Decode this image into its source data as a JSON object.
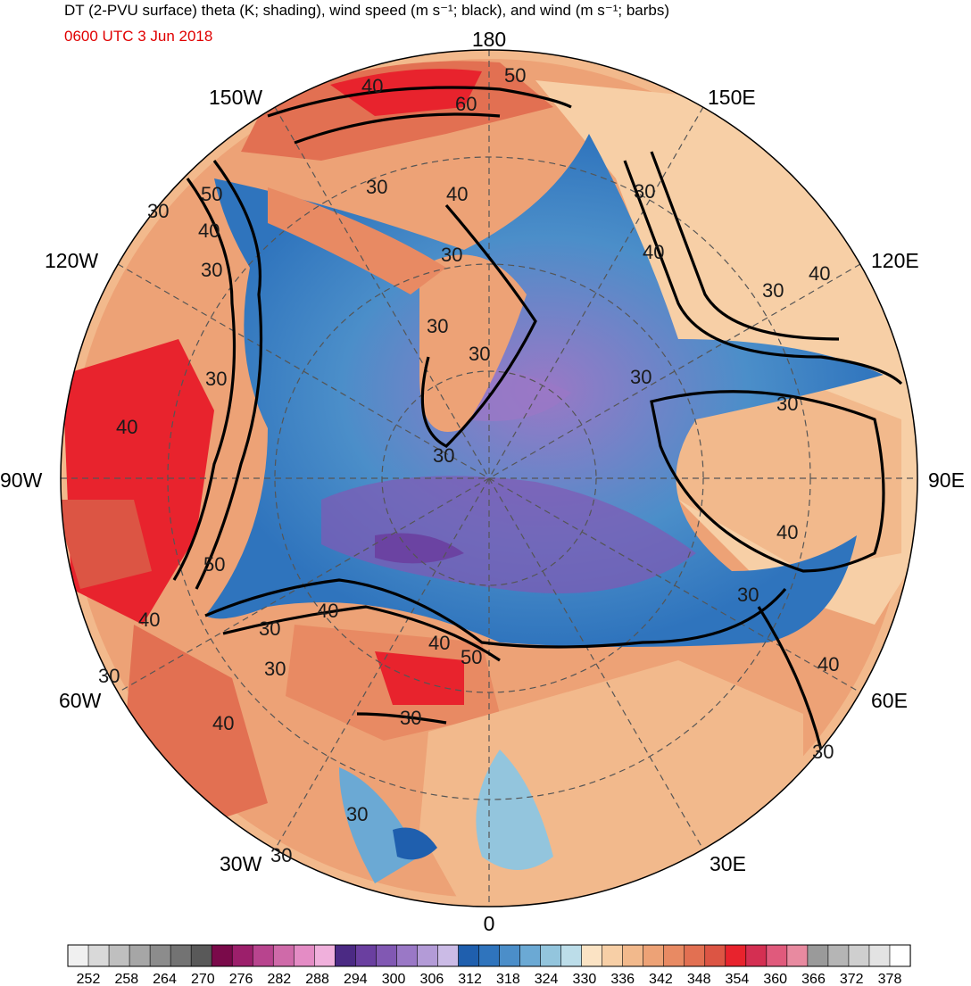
{
  "title": {
    "line1": "DT (2-PVU surface) theta (K; shading), wind speed (m s⁻¹; black), and wind (m s⁻¹; barbs)",
    "line2": "0600 UTC 3 Jun 2018",
    "line2_color": "#e00000"
  },
  "longitude_labels": [
    {
      "id": "lon-180",
      "text": "180"
    },
    {
      "id": "lon-150w",
      "text": "150W"
    },
    {
      "id": "lon-150e",
      "text": "150E"
    },
    {
      "id": "lon-120w",
      "text": "120W"
    },
    {
      "id": "lon-120e",
      "text": "120E"
    },
    {
      "id": "lon-90w",
      "text": "90W"
    },
    {
      "id": "lon-90e",
      "text": "90E"
    },
    {
      "id": "lon-60w",
      "text": "60W"
    },
    {
      "id": "lon-60e",
      "text": "60E"
    },
    {
      "id": "lon-30w",
      "text": "30W"
    },
    {
      "id": "lon-30e",
      "text": "30E"
    },
    {
      "id": "lon-0",
      "text": "0"
    }
  ],
  "wind_speed_contour_labels": [
    "30",
    "40",
    "50",
    "60"
  ],
  "colorbar": {
    "tick_labels": [
      "252",
      "258",
      "264",
      "270",
      "276",
      "282",
      "288",
      "294",
      "300",
      "306",
      "312",
      "318",
      "324",
      "330",
      "336",
      "342",
      "348",
      "354",
      "360",
      "366",
      "372",
      "378"
    ],
    "colors": [
      "#f0f0f0",
      "#d9d9d9",
      "#bfbfbf",
      "#a6a6a6",
      "#8c8c8c",
      "#737373",
      "#595959",
      "#7a0a4a",
      "#9c1f6b",
      "#b8448e",
      "#cf6aa9",
      "#e48cc5",
      "#f0b0dc",
      "#4b2a84",
      "#6a3fa0",
      "#8158b3",
      "#9a78c6",
      "#b39bd7",
      "#cbbbe6",
      "#1f5fae",
      "#2f74bd",
      "#4b8ec9",
      "#6ba9d4",
      "#93c5dd",
      "#bcdde9",
      "#fbe3c4",
      "#f7cfa6",
      "#f2b98c",
      "#eda276",
      "#e88a63",
      "#e27052",
      "#dc5544",
      "#e8232d",
      "#d42f52",
      "#e05a7c",
      "#e88aa0",
      "#9a9a9a",
      "#b5b5b5",
      "#cfcfcf",
      "#e3e3e3",
      "#ffffff"
    ]
  },
  "legend_colors": {
    "contour_line": "#000000",
    "map_outline": "#3a3a3a",
    "grid_line": "#555555"
  }
}
